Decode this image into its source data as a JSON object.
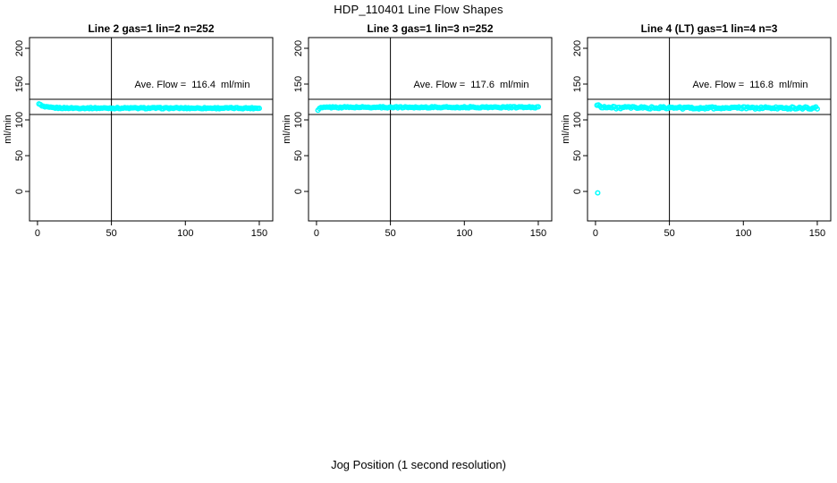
{
  "page": {
    "main_title": "HDP_110401  Line Flow Shapes",
    "xlabel_bottom": "Jog Position (1 second resolution)"
  },
  "colors": {
    "point": "#00ffff",
    "axis": "#000000",
    "background": "#ffffff"
  },
  "chart_data": [
    {
      "type": "scatter",
      "title": "Line 2 gas=1 lin=2 n=252",
      "line_number": 2,
      "gas": 1,
      "lin": 2,
      "n": 252,
      "annotation": "Ave. Flow =  116.4  ml/min",
      "ave_flow_ml_min": 116.4,
      "ylabel": "ml/min",
      "x_ticks": [
        0,
        50,
        100,
        150
      ],
      "y_ticks": [
        0,
        50,
        100,
        150,
        200
      ],
      "xlim": [
        -5.4,
        159.1
      ],
      "ylim": [
        -41.2,
        215
      ],
      "grid": false,
      "ref_line_x": 50,
      "ref_lines_y": [
        128.8,
        107.5
      ],
      "series": {
        "x_start": 1,
        "x_end": 150,
        "step": 1,
        "profile": [
          [
            1,
            123.0
          ],
          [
            2,
            120.8
          ],
          [
            3,
            119.2
          ],
          [
            5,
            118.0
          ],
          [
            8,
            117.2
          ],
          [
            12,
            116.8
          ],
          [
            20,
            116.5
          ],
          [
            60,
            116.4
          ],
          [
            150,
            116.4
          ]
        ],
        "jitter": 0.9,
        "seed": 1
      },
      "outliers": []
    },
    {
      "type": "scatter",
      "title": "Line 3 gas=1 lin=3 n=252",
      "line_number": 3,
      "gas": 1,
      "lin": 3,
      "n": 252,
      "annotation": "Ave. Flow =  117.6  ml/min",
      "ave_flow_ml_min": 117.6,
      "ylabel": "ml/min",
      "x_ticks": [
        0,
        50,
        100,
        150
      ],
      "y_ticks": [
        0,
        50,
        100,
        150,
        200
      ],
      "xlim": [
        -5.4,
        159.1
      ],
      "ylim": [
        -41.2,
        215
      ],
      "grid": false,
      "ref_line_x": 50,
      "ref_lines_y": [
        128.8,
        107.5
      ],
      "series": {
        "x_start": 1,
        "x_end": 150,
        "step": 1,
        "profile": [
          [
            1,
            113.5
          ],
          [
            2,
            115.5
          ],
          [
            3,
            116.8
          ],
          [
            6,
            117.4
          ],
          [
            10,
            117.6
          ],
          [
            60,
            117.6
          ],
          [
            150,
            117.6
          ]
        ],
        "jitter": 0.9,
        "seed": 2
      },
      "outliers": []
    },
    {
      "type": "scatter",
      "title": "Line 4 (LT) gas=1 lin=4 n=3",
      "line_number": 4,
      "line_tag": "LT",
      "gas": 1,
      "lin": 4,
      "n": 3,
      "annotation": "Ave. Flow =  116.8  ml/min",
      "ave_flow_ml_min": 116.8,
      "ylabel": "ml/min",
      "x_ticks": [
        0,
        50,
        100,
        150
      ],
      "y_ticks": [
        0,
        50,
        100,
        150,
        200
      ],
      "xlim": [
        -5.4,
        159.1
      ],
      "ylim": [
        -41.2,
        215
      ],
      "grid": false,
      "ref_line_x": 50,
      "ref_lines_y": [
        128.8,
        107.5
      ],
      "series": {
        "x_start": 1,
        "x_end": 150,
        "step": 1,
        "profile": [
          [
            1,
            121.0
          ],
          [
            2,
            120.0
          ],
          [
            4,
            118.5
          ],
          [
            8,
            117.4
          ],
          [
            15,
            117.0
          ],
          [
            60,
            116.7
          ],
          [
            150,
            116.6
          ]
        ],
        "jitter": 1.6,
        "seed": 3
      },
      "outliers": [
        [
          1.5,
          -2
        ]
      ]
    }
  ]
}
